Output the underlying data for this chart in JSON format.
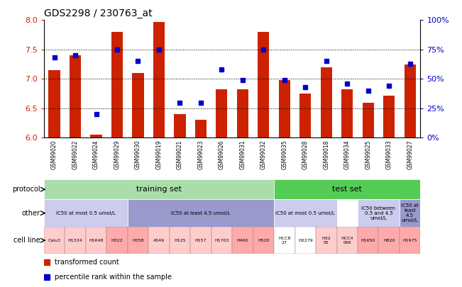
{
  "title": "GDS2298 / 230763_at",
  "gsm_labels": [
    "GSM99020",
    "GSM99022",
    "GSM99024",
    "GSM99029",
    "GSM99030",
    "GSM99019",
    "GSM99021",
    "GSM99023",
    "GSM99026",
    "GSM99031",
    "GSM99032",
    "GSM99035",
    "GSM99028",
    "GSM99018",
    "GSM99034",
    "GSM99025",
    "GSM99033",
    "GSM99027"
  ],
  "bar_values": [
    7.15,
    7.4,
    6.05,
    7.8,
    7.1,
    7.97,
    6.4,
    6.3,
    6.82,
    6.82,
    7.8,
    6.98,
    6.75,
    7.2,
    6.82,
    6.6,
    6.72,
    7.25
  ],
  "dot_values_pct": [
    68,
    70,
    20,
    75,
    65,
    75,
    30,
    30,
    58,
    49,
    75,
    49,
    43,
    65,
    46,
    40,
    44,
    63
  ],
  "ylim_left": [
    6.0,
    8.0
  ],
  "ylim_right": [
    0,
    100
  ],
  "yticks_left": [
    6.0,
    6.5,
    7.0,
    7.5,
    8.0
  ],
  "yticks_right": [
    0,
    25,
    50,
    75,
    100
  ],
  "ytick_labels_right": [
    "0%",
    "25%",
    "50%",
    "75%",
    "100%"
  ],
  "bar_color": "#cc2200",
  "dot_color": "#0000cc",
  "protocol_training_color": "#aaddaa",
  "protocol_test_color": "#55cc55",
  "other_seg1_color": "#ccccee",
  "other_seg2_color": "#9999cc",
  "cell_light_color": "#ffcccc",
  "cell_dark_color": "#ffaaaa",
  "cell_white_color": "#ffffff",
  "xtick_bg_color": "#cccccc",
  "protocol_row": {
    "label": "protocol",
    "training": {
      "text": "training set",
      "start": 0,
      "end": 11
    },
    "test": {
      "text": "test set",
      "start": 11,
      "end": 18
    }
  },
  "other_row": {
    "label": "other",
    "segments": [
      {
        "text": "IC50 at most 0.5 umol/L",
        "type": "light",
        "start": 0,
        "end": 4
      },
      {
        "text": "IC50 at least 4.5 umol/L",
        "type": "dark",
        "start": 4,
        "end": 11
      },
      {
        "text": "IC50 at most 0.5 umol/L",
        "type": "light",
        "start": 11,
        "end": 14
      },
      {
        "text": "IC50 between\n0.5 and 4.5\numol/L",
        "type": "light",
        "start": 15,
        "end": 17
      },
      {
        "text": "IC50 at\nleast\n4.5\numol/L",
        "type": "dark",
        "start": 17,
        "end": 18
      }
    ]
  },
  "cell_line_row": {
    "label": "cell line",
    "cells": [
      {
        "text": "Calu3",
        "type": "light",
        "start": 0,
        "end": 1
      },
      {
        "text": "H1334",
        "type": "light",
        "start": 1,
        "end": 2
      },
      {
        "text": "H1648",
        "type": "light",
        "start": 2,
        "end": 3
      },
      {
        "text": "H322",
        "type": "dark",
        "start": 3,
        "end": 4
      },
      {
        "text": "H358",
        "type": "dark",
        "start": 4,
        "end": 5
      },
      {
        "text": "A549",
        "type": "light",
        "start": 5,
        "end": 6
      },
      {
        "text": "H125",
        "type": "light",
        "start": 6,
        "end": 7
      },
      {
        "text": "H157",
        "type": "light",
        "start": 7,
        "end": 8
      },
      {
        "text": "H1703",
        "type": "light",
        "start": 8,
        "end": 9
      },
      {
        "text": "H460",
        "type": "dark",
        "start": 9,
        "end": 10
      },
      {
        "text": "H520",
        "type": "dark",
        "start": 10,
        "end": 11
      },
      {
        "text": "HCC8\n27",
        "type": "white",
        "start": 11,
        "end": 12
      },
      {
        "text": "H2279",
        "type": "white",
        "start": 12,
        "end": 13
      },
      {
        "text": "H32\n55",
        "type": "light",
        "start": 13,
        "end": 14
      },
      {
        "text": "HCC4\n006",
        "type": "light",
        "start": 14,
        "end": 15
      },
      {
        "text": "H1650",
        "type": "dark",
        "start": 15,
        "end": 16
      },
      {
        "text": "H820",
        "type": "dark",
        "start": 16,
        "end": 17
      },
      {
        "text": "H1975",
        "type": "dark",
        "start": 17,
        "end": 18
      }
    ]
  },
  "legend": [
    {
      "label": "transformed count",
      "color": "#cc2200"
    },
    {
      "label": "percentile rank within the sample",
      "color": "#0000cc"
    }
  ]
}
